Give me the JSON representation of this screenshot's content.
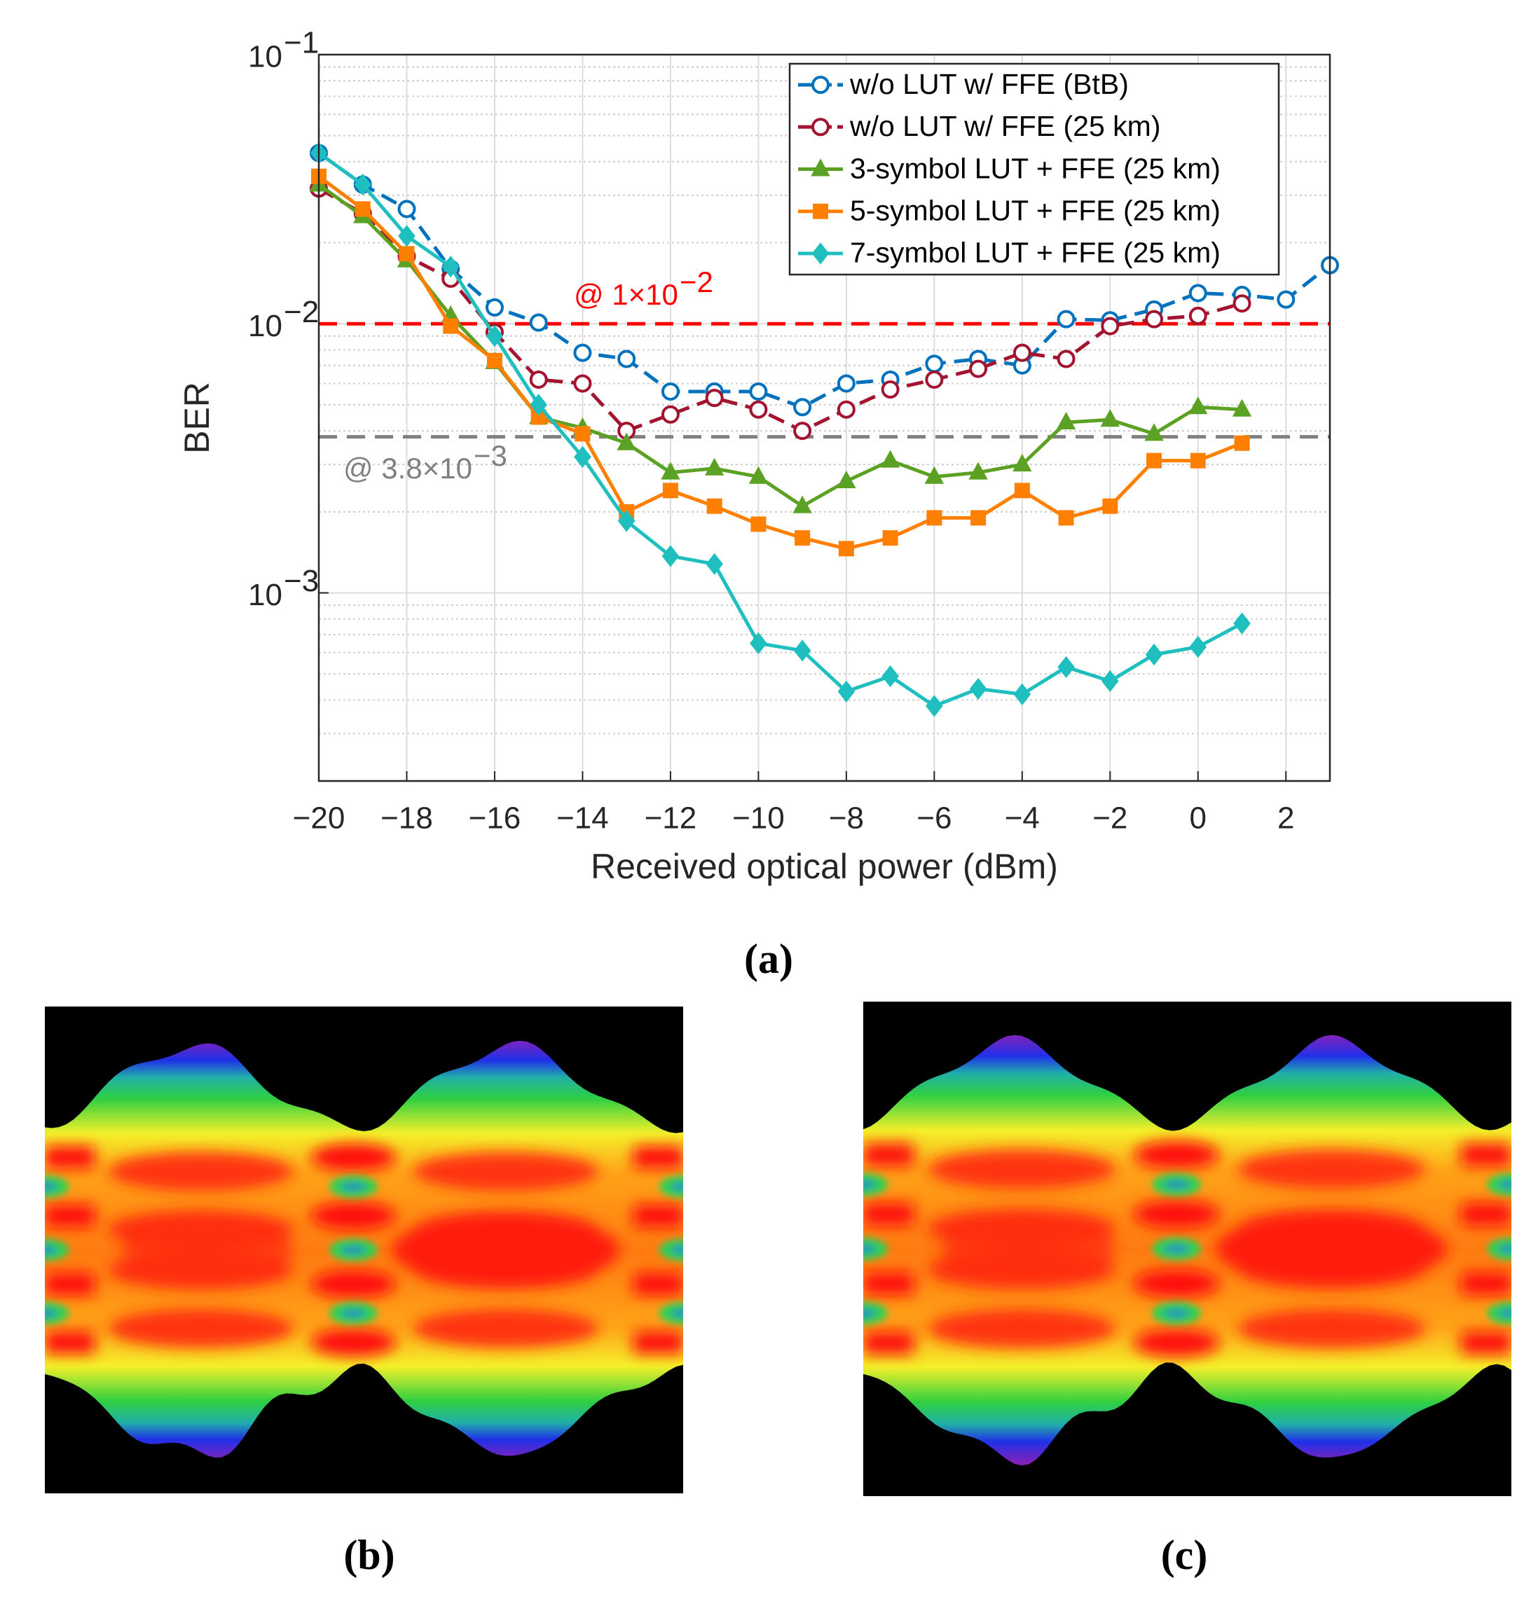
{
  "chart_data": {
    "type": "line",
    "xlabel": "Received optical power (dBm)",
    "ylabel": "BER",
    "log_y": true,
    "grid": true,
    "minor_grid": true,
    "legend_position": "upper right",
    "xlim": [
      -20,
      3
    ],
    "xticks": [
      {
        "value": -20,
        "label": "−20"
      },
      {
        "value": -18,
        "label": "−18"
      },
      {
        "value": -16,
        "label": "−16"
      },
      {
        "value": -14,
        "label": "−14"
      },
      {
        "value": -12,
        "label": "−12"
      },
      {
        "value": -10,
        "label": "−10"
      },
      {
        "value": -8,
        "label": "−8"
      },
      {
        "value": -6,
        "label": "−6"
      },
      {
        "value": -4,
        "label": "−4"
      },
      {
        "value": -2,
        "label": "−2"
      },
      0,
      2
    ],
    "ylim": [
      0.0002,
      0.1
    ],
    "yticks": [
      {
        "value": 0.001,
        "label": "10",
        "exponent": "−3"
      },
      {
        "value": 0.01,
        "label": "10",
        "exponent": "−2"
      },
      {
        "value": 0.1,
        "label": "10",
        "exponent": "−1"
      }
    ],
    "reference_lines": [
      {
        "value": 0.01,
        "color": "#ff0000",
        "text": "@ 1×10",
        "exponent": "−2"
      },
      {
        "value": 0.0038,
        "color": "#808080",
        "text": "@ 3.8×10",
        "exponent": "−3"
      }
    ],
    "x": [
      -20,
      -19,
      -18,
      -17,
      -16,
      -15,
      -14,
      -13,
      -12,
      -11,
      -10,
      -9,
      -8,
      -7,
      -6,
      -5,
      -4,
      -3,
      -2,
      -1,
      0,
      1,
      2,
      3
    ],
    "series": [
      {
        "name": "w/o LUT w/ FFE (BtB)",
        "color": "#0072bd",
        "linestyle": "dashed",
        "marker": "circle-open",
        "values": [
          0.0431,
          0.0329,
          0.0267,
          0.016,
          0.0115,
          0.0101,
          0.0078,
          0.0074,
          0.0056,
          0.0056,
          0.0056,
          0.0049,
          0.006,
          0.0062,
          0.0071,
          0.0074,
          0.007,
          0.0104,
          0.0103,
          0.0113,
          0.013,
          0.0128,
          0.0123,
          0.0165
        ]
      },
      {
        "name": "w/o LUT w/ FFE (25 km)",
        "color": "#a2142f",
        "linestyle": "dashed",
        "marker": "circle-open",
        "values": [
          0.0318,
          0.0257,
          0.0178,
          0.0147,
          0.0093,
          0.0062,
          0.006,
          0.004,
          0.0046,
          0.0053,
          0.0048,
          0.004,
          0.0048,
          0.0057,
          0.0062,
          0.0068,
          0.0078,
          0.0074,
          0.0098,
          0.0104,
          0.0107,
          0.0119,
          null,
          null
        ]
      },
      {
        "name": "3-symbol LUT + FFE (25 km)",
        "color": "#5ba224",
        "linestyle": "solid",
        "marker": "triangle",
        "values": [
          0.0329,
          0.0251,
          0.0172,
          0.0107,
          0.0072,
          0.0045,
          0.0041,
          0.0036,
          0.0028,
          0.0029,
          0.0027,
          0.0021,
          0.0026,
          0.0031,
          0.0027,
          0.0028,
          0.003,
          0.0043,
          0.0044,
          0.0039,
          0.0049,
          0.0048,
          null,
          null
        ]
      },
      {
        "name": "5-symbol LUT + FFE (25 km)",
        "color": "#ff8000",
        "linestyle": "solid",
        "marker": "square",
        "values": [
          0.0353,
          0.0267,
          0.0182,
          0.0098,
          0.0073,
          0.0045,
          0.0039,
          0.002,
          0.0024,
          0.0021,
          0.0018,
          0.0016,
          0.00146,
          0.0016,
          0.0019,
          0.0019,
          0.0024,
          0.0019,
          0.0021,
          0.0031,
          0.0031,
          0.0036,
          null,
          null
        ]
      },
      {
        "name": "7-symbol LUT + FFE (25 km)",
        "color": "#1fbfbf",
        "linestyle": "solid",
        "marker": "diamond",
        "values": [
          0.0431,
          0.0329,
          0.0212,
          0.0163,
          0.009,
          0.005,
          0.0032,
          0.00185,
          0.00137,
          0.00128,
          0.00065,
          0.00061,
          0.00043,
          0.00049,
          0.00038,
          0.00044,
          0.00042,
          0.00053,
          0.00047,
          0.00059,
          0.00063,
          0.00077,
          null,
          null
        ]
      }
    ],
    "caption": "(a)"
  },
  "panels": [
    {
      "caption": "(b)"
    },
    {
      "caption": "(c)"
    }
  ]
}
